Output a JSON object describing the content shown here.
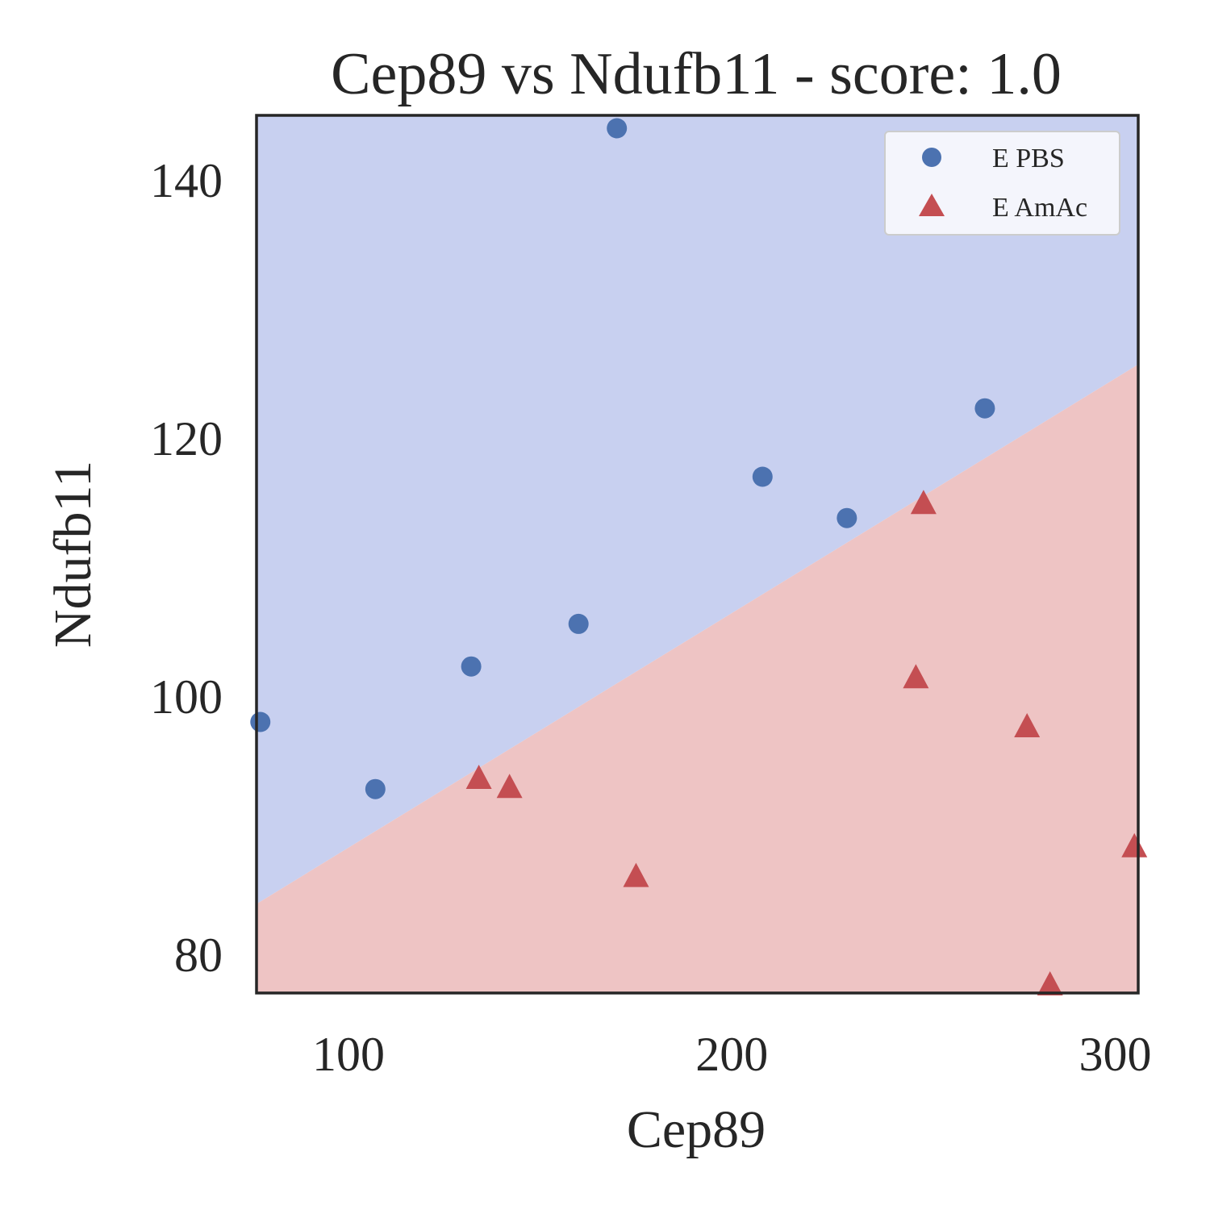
{
  "chart_data": {
    "type": "scatter",
    "title": "Cep89 vs Ndufb11 - score: 1.0",
    "xlabel": "Cep89",
    "ylabel": "Ndufb11",
    "xlim": [
      76,
      306
    ],
    "ylim": [
      77,
      145
    ],
    "xticks": [
      100,
      200,
      300
    ],
    "yticks": [
      80,
      100,
      120,
      140
    ],
    "grid": false,
    "legend_position": "top-right",
    "decision_boundary": {
      "points": [
        [
          76,
          83.9
        ],
        [
          306,
          125.7
        ]
      ],
      "region_above_color": "#c8d0f0",
      "region_below_color": "#eec4c4"
    },
    "series": [
      {
        "name": "E PBS",
        "marker": "circle",
        "color": "#4c72b0",
        "points": [
          [
            77,
            98
          ],
          [
            107,
            92.8
          ],
          [
            132,
            102.3
          ],
          [
            160,
            105.6
          ],
          [
            170,
            144
          ],
          [
            208,
            117
          ],
          [
            230,
            113.8
          ],
          [
            266,
            122.3
          ]
        ]
      },
      {
        "name": "E AmAc",
        "marker": "triangle",
        "color": "#c44e52",
        "points": [
          [
            134,
            93.5
          ],
          [
            142,
            92.8
          ],
          [
            175,
            85.9
          ],
          [
            248,
            101.3
          ],
          [
            250,
            114.8
          ],
          [
            277,
            97.5
          ],
          [
            283,
            77.5
          ],
          [
            305,
            88.2
          ]
        ]
      }
    ]
  }
}
